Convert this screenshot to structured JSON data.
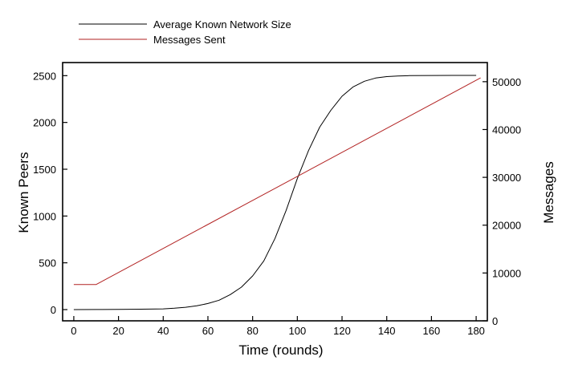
{
  "chart_data": {
    "type": "line",
    "xlabel": "Time (rounds)",
    "ylabel_left": "Known Peers",
    "ylabel_right": "Messages",
    "xlim": [
      -5,
      185
    ],
    "ylim_left": [
      -120,
      2640
    ],
    "ylim_right": [
      0,
      54000
    ],
    "xticks": [
      0,
      20,
      40,
      60,
      80,
      100,
      120,
      140,
      160,
      180
    ],
    "yticks_left": [
      0,
      500,
      1000,
      1500,
      2000,
      2500
    ],
    "yticks_right": [
      0,
      10000,
      20000,
      30000,
      40000,
      50000
    ],
    "legend_position": "top-left, above plot",
    "series": [
      {
        "name": "Average Known Network Size",
        "axis": "left",
        "color": "#000000",
        "x": [
          0,
          10,
          20,
          30,
          40,
          45,
          50,
          55,
          60,
          65,
          70,
          75,
          80,
          85,
          90,
          95,
          100,
          105,
          110,
          115,
          120,
          125,
          130,
          135,
          140,
          145,
          150,
          160,
          170,
          180
        ],
        "y": [
          0,
          1,
          2,
          4,
          8,
          15,
          25,
          40,
          65,
          100,
          160,
          240,
          360,
          520,
          760,
          1060,
          1400,
          1700,
          1950,
          2130,
          2280,
          2380,
          2440,
          2475,
          2490,
          2497,
          2500,
          2502,
          2503,
          2503
        ]
      },
      {
        "name": "Messages Sent",
        "axis": "right",
        "color": "#b22222",
        "x": [
          0,
          10,
          182
        ],
        "y": [
          7600,
          7600,
          50800
        ]
      }
    ]
  }
}
